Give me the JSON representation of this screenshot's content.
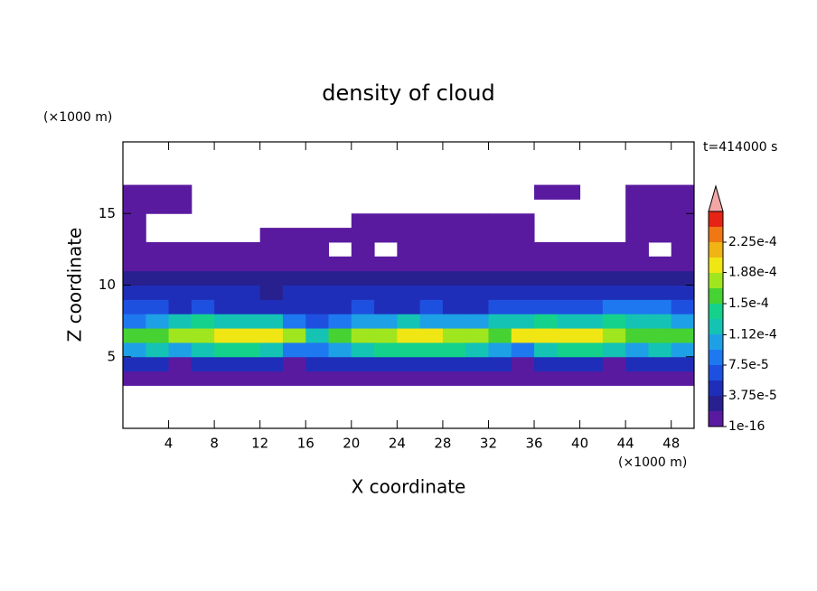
{
  "chart_data": {
    "type": "contour",
    "title": "density of cloud",
    "x_label": "X coordinate",
    "y_label": "Z coordinate",
    "x_unit": "(×1000 m)",
    "y_unit": "(×1000 m)",
    "time_label": "t=414000 s",
    "xlim": [
      0,
      50
    ],
    "ylim": [
      0,
      20
    ],
    "xticks": [
      4,
      8,
      12,
      16,
      20,
      24,
      28,
      32,
      36,
      40,
      44,
      48
    ],
    "yticks": [
      5,
      10,
      15
    ],
    "x": [
      1,
      3,
      5,
      7,
      9,
      11,
      13,
      15,
      17,
      19,
      21,
      23,
      25,
      27,
      29,
      31,
      33,
      35,
      37,
      39,
      41,
      43,
      45,
      47,
      49
    ],
    "z": [
      3.5,
      4.5,
      5.5,
      6.5,
      7.5,
      8.5,
      9.5,
      10.5,
      11.5,
      12.5,
      13.5,
      14.5,
      15.5,
      16.5
    ],
    "values": [
      [
        1e-05,
        1e-05,
        1e-05,
        1e-05,
        1e-05,
        1e-05,
        1e-05,
        1e-05,
        1e-05,
        1e-05,
        1e-05,
        1e-05,
        1e-05,
        1e-05,
        1e-05,
        1e-05,
        1e-05,
        1e-05,
        1e-05,
        1e-05,
        1e-05,
        1e-05,
        1e-05,
        1e-05,
        1e-05
      ],
      [
        4e-05,
        4e-05,
        1e-05,
        4e-05,
        4e-05,
        4e-05,
        4e-05,
        1e-05,
        4e-05,
        4e-05,
        4e-05,
        4e-05,
        4e-05,
        4e-05,
        4e-05,
        4e-05,
        4e-05,
        1e-05,
        4e-05,
        4e-05,
        4e-05,
        1e-05,
        4e-05,
        4e-05,
        4e-05
      ],
      [
        0.00011,
        0.00012,
        0.0001,
        0.00013,
        0.00014,
        0.00014,
        0.00013,
        9e-05,
        8e-05,
        0.00011,
        0.00013,
        0.00014,
        0.00014,
        0.00014,
        0.00014,
        0.00013,
        0.00011,
        9e-05,
        0.00013,
        0.00014,
        0.00014,
        0.00012,
        0.00011,
        0.00012,
        0.00011
      ],
      [
        0.00015,
        0.00016,
        0.00017,
        0.00018,
        0.00019,
        0.0002,
        0.00019,
        0.00017,
        0.00013,
        0.00015,
        0.00017,
        0.00018,
        0.00019,
        0.00019,
        0.00018,
        0.00018,
        0.00016,
        0.00019,
        0.0002,
        0.0002,
        0.00019,
        0.00018,
        0.00016,
        0.00015,
        0.00015
      ],
      [
        9e-05,
        0.00011,
        0.00012,
        0.00014,
        0.00013,
        0.00013,
        0.00012,
        8e-05,
        6e-05,
        8e-05,
        0.0001,
        0.00011,
        0.00012,
        0.00011,
        0.0001,
        0.00011,
        0.00012,
        0.00013,
        0.00014,
        0.00013,
        0.00013,
        0.00014,
        0.00013,
        0.00012,
        0.00011
      ],
      [
        6e-05,
        6e-05,
        5e-05,
        6e-05,
        5e-05,
        5e-05,
        5e-05,
        4e-05,
        5e-05,
        5e-05,
        6e-05,
        5e-05,
        5e-05,
        6e-05,
        5e-05,
        5e-05,
        6e-05,
        6e-05,
        6e-05,
        6e-05,
        7e-05,
        9e-05,
        9e-05,
        8e-05,
        7e-05
      ],
      [
        4e-05,
        4e-05,
        4e-05,
        5e-05,
        4e-05,
        4e-05,
        3e-05,
        4e-05,
        4e-05,
        4e-05,
        4e-05,
        4e-05,
        4e-05,
        4e-05,
        4e-05,
        5e-05,
        5e-05,
        4e-05,
        4e-05,
        4e-05,
        5e-05,
        5e-05,
        5e-05,
        4e-05,
        5e-05
      ],
      [
        3e-05,
        2e-05,
        2e-05,
        3e-05,
        2e-05,
        2e-05,
        2e-05,
        2e-05,
        2e-05,
        2e-05,
        2e-05,
        2e-05,
        2e-05,
        3e-05,
        2e-05,
        2e-05,
        2e-05,
        2e-05,
        2e-05,
        2e-05,
        2e-05,
        3e-05,
        3e-05,
        3e-05,
        2e-05
      ],
      [
        1e-05,
        1e-05,
        1e-05,
        1e-05,
        1e-05,
        1e-05,
        1e-05,
        1e-05,
        1e-05,
        1e-05,
        1e-05,
        1e-05,
        1e-05,
        1e-05,
        1e-05,
        1e-05,
        1e-05,
        1e-05,
        1e-05,
        1e-05,
        1e-05,
        1e-05,
        1e-05,
        1e-05,
        1e-05
      ],
      [
        1e-05,
        1e-05,
        1e-05,
        1e-05,
        1e-05,
        1e-05,
        1e-05,
        1e-05,
        1e-05,
        null,
        1e-05,
        null,
        1e-05,
        1e-05,
        1e-05,
        1e-05,
        1e-05,
        1e-05,
        1e-05,
        1e-05,
        1e-05,
        1e-05,
        1e-05,
        null,
        1e-05
      ],
      [
        1e-05,
        null,
        null,
        null,
        null,
        null,
        1e-05,
        1e-05,
        1e-05,
        1e-05,
        1e-05,
        1e-05,
        1e-05,
        1e-05,
        1e-05,
        1e-05,
        1e-05,
        1e-05,
        null,
        null,
        null,
        null,
        1e-05,
        1e-05,
        1e-05
      ],
      [
        1e-05,
        null,
        null,
        null,
        null,
        null,
        null,
        null,
        null,
        null,
        1e-05,
        1e-05,
        1e-05,
        1e-05,
        1e-05,
        1e-05,
        1e-05,
        1e-05,
        null,
        null,
        null,
        null,
        1e-05,
        1e-05,
        1e-05
      ],
      [
        1e-05,
        1e-05,
        1e-05,
        null,
        null,
        null,
        null,
        null,
        null,
        null,
        null,
        null,
        null,
        null,
        null,
        null,
        null,
        null,
        null,
        null,
        null,
        null,
        1e-05,
        1e-05,
        1e-05
      ],
      [
        1e-05,
        1e-05,
        1e-05,
        null,
        null,
        null,
        null,
        null,
        null,
        null,
        null,
        null,
        null,
        null,
        null,
        null,
        null,
        null,
        1e-05,
        1e-05,
        null,
        null,
        1e-05,
        1e-05,
        1e-05
      ]
    ],
    "levels": [
      1e-16,
      1.875e-05,
      3.75e-05,
      5.625e-05,
      7.5e-05,
      9.375e-05,
      0.0001125,
      0.00013125,
      0.00015,
      0.00016875,
      0.0001875,
      0.00020625,
      0.000225,
      0.00024375
    ],
    "colors": [
      "#5a1aa0",
      "#28208f",
      "#1e2eb9",
      "#1e50e0",
      "#1e78f0",
      "#1ea0e6",
      "#14c3b4",
      "#14d28c",
      "#46d232",
      "#a0e61e",
      "#f0e614",
      "#f0b414",
      "#f07814",
      "#e62314"
    ],
    "colorbar_extend": "max",
    "over_color": "#f4a6a6",
    "colorbar_ticks": [
      {
        "value": 1e-16,
        "label": "1e-16"
      },
      {
        "value": 3.75e-05,
        "label": "3.75e-5"
      },
      {
        "value": 7.5e-05,
        "label": "7.5e-5"
      },
      {
        "value": 0.000112,
        "label": "1.12e-4"
      },
      {
        "value": 0.00015,
        "label": "1.5e-4"
      },
      {
        "value": 0.000188,
        "label": "1.88e-4"
      },
      {
        "value": 0.000225,
        "label": "2.25e-4"
      }
    ]
  }
}
